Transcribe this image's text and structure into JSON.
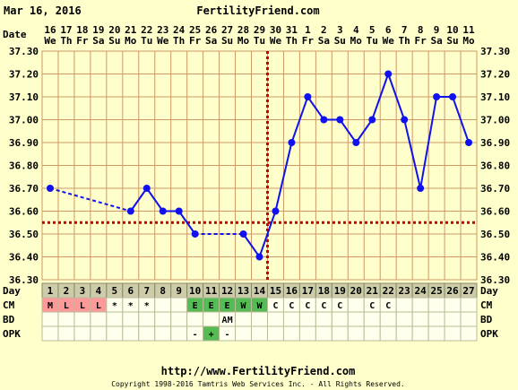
{
  "header": {
    "date": "Mar 16, 2016",
    "site": "FertilityFriend.com"
  },
  "footer": {
    "url": "http://www.FertilityFriend.com",
    "copyright": "Copyright 1998-2016 Tamtris Web Services Inc. - All Rights Reserved."
  },
  "colors": {
    "background": "#ffffcc",
    "grid": "#cc9966",
    "line": "#1111ee",
    "coverline": "#cc0000",
    "ovulation_line": "#cc0000",
    "menses_cell": "#ff9999",
    "egg_white_cell": "#55bb55",
    "opk_positive_cell": "#55bb55"
  },
  "chart_data": {
    "type": "line",
    "title": "",
    "xlabel": "Date",
    "ylabel": "",
    "ylim": [
      36.3,
      37.3
    ],
    "y_ticks": [
      "37.30",
      "37.20",
      "37.10",
      "37.00",
      "36.90",
      "36.80",
      "36.70",
      "36.60",
      "36.50",
      "36.40",
      "36.30"
    ],
    "dates": [
      "16",
      "17",
      "18",
      "19",
      "20",
      "21",
      "22",
      "23",
      "24",
      "25",
      "26",
      "27",
      "28",
      "29",
      "30",
      "31",
      "1",
      "2",
      "3",
      "4",
      "5",
      "6",
      "7",
      "8",
      "9",
      "10",
      "11"
    ],
    "weekdays": [
      "We",
      "Th",
      "Fr",
      "Sa",
      "Su",
      "Mo",
      "Tu",
      "We",
      "Th",
      "Fr",
      "Sa",
      "Su",
      "Mo",
      "Tu",
      "We",
      "Th",
      "Fr",
      "Sa",
      "Su",
      "Mo",
      "Tu",
      "We",
      "Th",
      "Fr",
      "Sa",
      "Su",
      "Mo"
    ],
    "cycle_days": [
      "1",
      "2",
      "3",
      "4",
      "5",
      "6",
      "7",
      "8",
      "9",
      "10",
      "11",
      "12",
      "13",
      "14",
      "15",
      "16",
      "17",
      "18",
      "19",
      "20",
      "21",
      "22",
      "23",
      "24",
      "25",
      "26",
      "27"
    ],
    "temperatures": [
      36.7,
      null,
      null,
      null,
      null,
      36.6,
      36.7,
      36.6,
      36.6,
      36.5,
      null,
      null,
      36.5,
      36.4,
      36.6,
      36.9,
      37.1,
      37.0,
      37.0,
      36.9,
      37.0,
      37.2,
      37.0,
      36.7,
      37.1,
      37.1,
      36.9
    ],
    "coverline": 36.55,
    "ovulation_day": 14,
    "rows": [
      {
        "label": "CM",
        "values": [
          "M",
          "L",
          "L",
          "L",
          "*",
          "*",
          "*",
          "",
          "",
          "E",
          "E",
          "E",
          "W",
          "W",
          "C",
          "C",
          "C",
          "C",
          "C",
          "",
          "C",
          "C",
          "",
          "",
          "",
          "",
          ""
        ]
      },
      {
        "label": "BD",
        "values": [
          "",
          "",
          "",
          "",
          "",
          "",
          "",
          "",
          "",
          "",
          "",
          "AM",
          "",
          "",
          "",
          "",
          "",
          "",
          "",
          "",
          "",
          "",
          "",
          "",
          "",
          "",
          ""
        ]
      },
      {
        "label": "OPK",
        "values": [
          "",
          "",
          "",
          "",
          "",
          "",
          "",
          "",
          "",
          "-",
          "+",
          "-",
          "",
          "",
          "",
          "",
          "",
          "",
          "",
          "",
          "",
          "",
          "",
          "",
          "",
          "",
          ""
        ]
      }
    ],
    "day_label": "Day",
    "date_label": "Date"
  }
}
